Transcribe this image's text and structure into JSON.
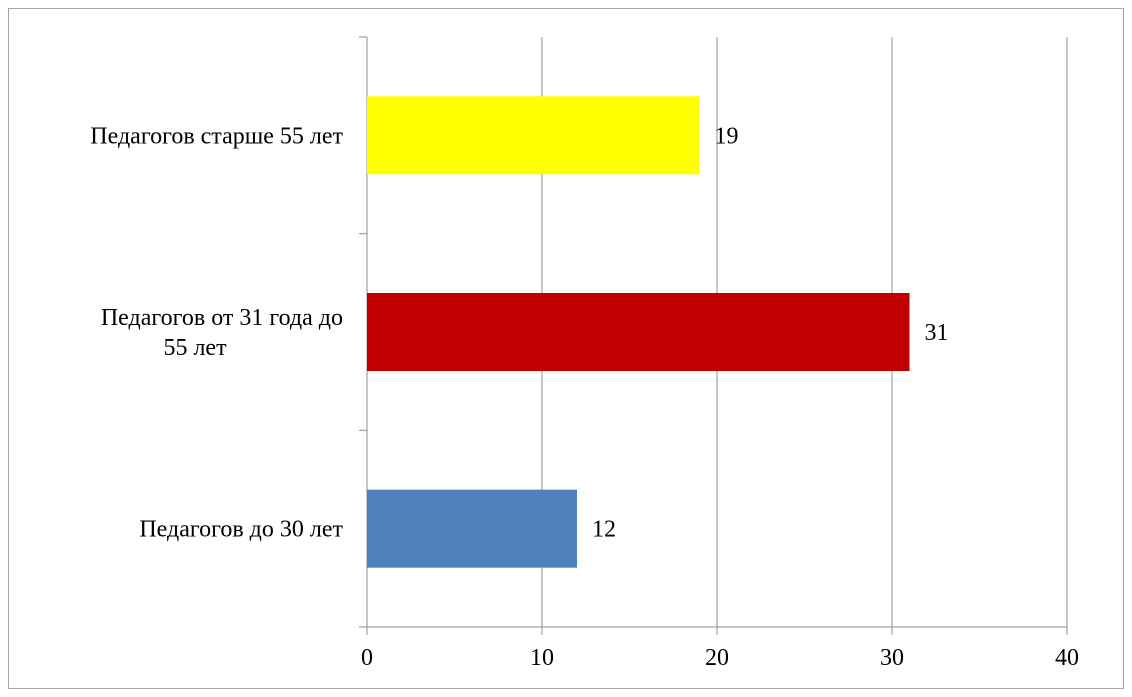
{
  "chart_data": {
    "type": "bar",
    "orientation": "horizontal",
    "categories": [
      "Педагогов до 30 лет",
      [
        "Педагогов от 31 года до",
        "55 лет"
      ],
      "Педагогов старше 55 лет"
    ],
    "values": [
      12,
      31,
      19
    ],
    "bar_colors": [
      "#4f81bd",
      "#c00000",
      "#ffff00"
    ],
    "data_labels": [
      "12",
      "31",
      "19"
    ],
    "xlim": [
      0,
      40
    ],
    "x_ticks": [
      0,
      10,
      20,
      30,
      40
    ],
    "grid": true,
    "legend": "none",
    "title": "",
    "xlabel": "",
    "ylabel": ""
  }
}
